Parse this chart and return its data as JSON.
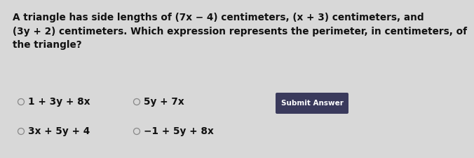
{
  "question_text": "A triangle has side lengths of (7x − 4) centimeters, (x + 3) centimeters, and\n(3y + 2) centimeters. Which expression represents the perimeter, in centimeters, of\nthe triangle?",
  "options": [
    {
      "label": "1 + 3y + 8x"
    },
    {
      "label": "5y + 7x"
    },
    {
      "label": "3x + 5y + 4"
    },
    {
      "label": "−1 + 5y + 8x"
    }
  ],
  "button_text": "Submit Answer",
  "button_color": "#3a3a5c",
  "button_text_color": "#ffffff",
  "bg_color": "#d8d8d8",
  "panel_color": "#d4d4d4",
  "panel_border_color": "#bbbbbb",
  "question_fontsize": 9.8,
  "option_fontsize": 9.8,
  "button_fontsize": 7.5,
  "circle_color": "#888888",
  "text_color": "#111111",
  "question_bg": "#c8c8c8"
}
